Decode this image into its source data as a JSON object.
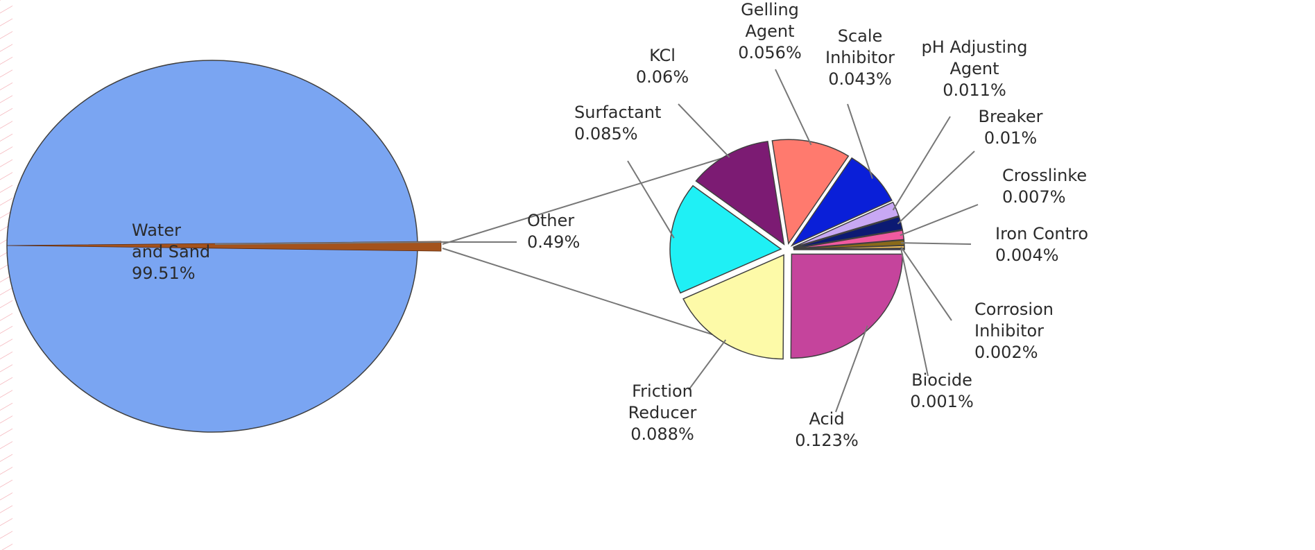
{
  "chart_data": {
    "type": "pie",
    "variant": "pie-of-pie",
    "main_pie": {
      "slices": [
        {
          "name": "Water and Sand",
          "label_lines": [
            "Water",
            "and Sand",
            "99.51%"
          ],
          "value": 99.51,
          "color": "#7aa5f2"
        },
        {
          "name": "Other",
          "label_lines": [
            "Other",
            "0.49%"
          ],
          "value": 0.49,
          "color": "#a4521c"
        }
      ]
    },
    "secondary_pie": {
      "parent": "Other",
      "slices": [
        {
          "name": "Acid",
          "label_lines": [
            "Acid",
            "0.123%"
          ],
          "value": 0.123,
          "color": "#c5449c"
        },
        {
          "name": "Friction Reducer",
          "label_lines": [
            "Friction",
            "Reducer",
            "0.088%"
          ],
          "value": 0.088,
          "color": "#fdfaa8"
        },
        {
          "name": "Surfactant",
          "label_lines": [
            "Surfactant",
            "0.085%"
          ],
          "value": 0.085,
          "color": "#1ff0f5"
        },
        {
          "name": "KCl",
          "label_lines": [
            "KCl",
            "0.06%"
          ],
          "value": 0.06,
          "color": "#7c1b73"
        },
        {
          "name": "Gelling Agent",
          "label_lines": [
            "Gelling",
            "Agent",
            "0.056%"
          ],
          "value": 0.056,
          "color": "#ff7a6e"
        },
        {
          "name": "Scale Inhibitor",
          "label_lines": [
            "Scale",
            "Inhibitor",
            "0.043%"
          ],
          "value": 0.043,
          "color": "#0a1fd8"
        },
        {
          "name": "pH Adjusting Agent",
          "label_lines": [
            "pH Adjusting",
            "Agent",
            "0.011%"
          ],
          "value": 0.011,
          "color": "#c8a8f4"
        },
        {
          "name": "Breaker",
          "label_lines": [
            "Breaker",
            "0.01%"
          ],
          "value": 0.01,
          "color": "#0c1a73"
        },
        {
          "name": "Crosslinker",
          "label_lines": [
            "Crosslinke",
            "0.007%"
          ],
          "value": 0.007,
          "color": "#f05aa0"
        },
        {
          "name": "Iron Control",
          "label_lines": [
            "Iron Contro",
            "0.004%"
          ],
          "value": 0.004,
          "color": "#8a6a1a"
        },
        {
          "name": "Corrosion Inhibitor",
          "label_lines": [
            "Corrosion",
            "Inhibitor",
            "0.002%"
          ],
          "value": 0.002,
          "color": "#f2c05a"
        },
        {
          "name": "Biocide",
          "label_lines": [
            "Biocide",
            "0.001%"
          ],
          "value": 0.001,
          "color": "#3b2a6e"
        }
      ]
    },
    "title": "",
    "legend": "none"
  },
  "colors": {
    "background": "#ffffff",
    "left_border_pattern": "#f2a0a8",
    "leader_line": "#777777"
  }
}
